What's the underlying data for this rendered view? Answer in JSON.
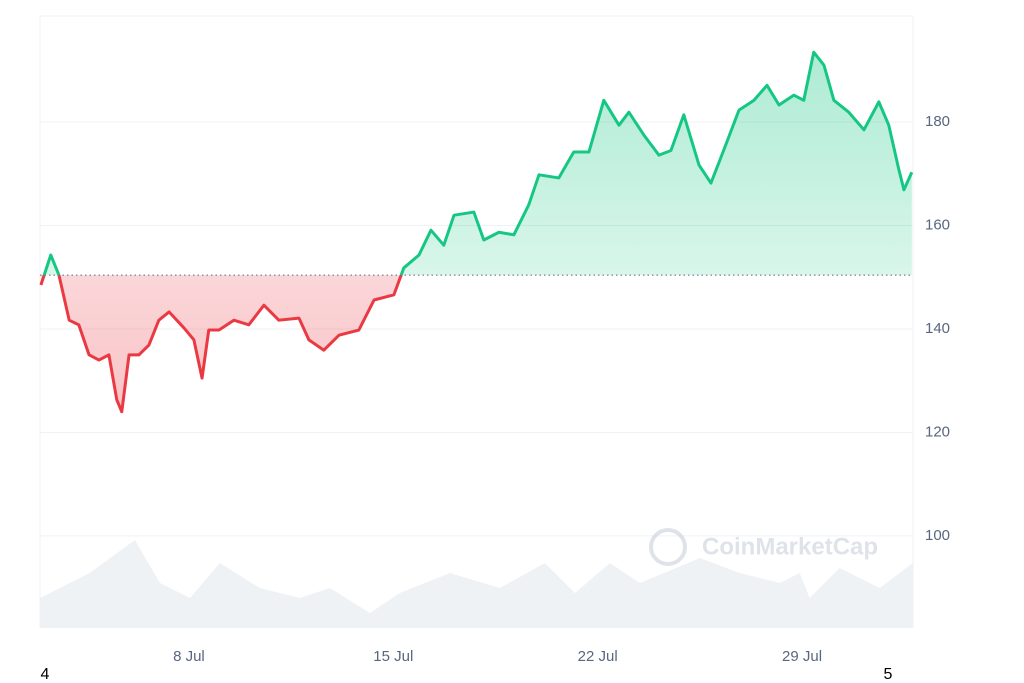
{
  "chart_data": {
    "type": "line",
    "x": [
      2.93,
      3.27,
      3.55,
      3.9,
      4.23,
      4.58,
      4.92,
      5.26,
      5.53,
      5.7,
      5.95,
      6.29,
      6.63,
      6.97,
      7.32,
      7.83,
      8.17,
      8.45,
      8.68,
      9.03,
      9.54,
      10.05,
      10.57,
      11.08,
      11.77,
      12.11,
      12.62,
      13.14,
      13.82,
      14.34,
      15.02,
      15.36,
      15.88,
      16.29,
      16.73,
      17.08,
      17.76,
      18.1,
      18.62,
      19.13,
      19.64,
      19.99,
      20.67,
      21.18,
      21.7,
      22.21,
      22.73,
      23.07,
      23.58,
      24.1,
      24.51,
      24.95,
      25.47,
      25.88,
      26.32,
      26.84,
      27.35,
      27.8,
      28.21,
      28.72,
      29.06,
      29.4,
      29.75,
      30.09,
      30.6,
      31.12,
      31.63,
      31.97,
      32.32,
      32.49,
      32.76
    ],
    "series": [
      {
        "color": "#16c784",
        "negative_color": "#ea3943",
        "values": [
          148.5,
          154.3,
          150.4,
          141.7,
          140.8,
          135,
          134,
          135,
          126.3,
          124,
          135,
          135,
          136.9,
          141.7,
          143.3,
          140.2,
          137.9,
          130.5,
          139.8,
          139.8,
          141.7,
          140.8,
          144.6,
          141.7,
          142.1,
          137.9,
          135.9,
          138.8,
          139.8,
          145.6,
          146.6,
          151.8,
          154.3,
          159.1,
          156.2,
          162,
          162.6,
          157.2,
          158.7,
          158.2,
          164,
          169.8,
          169.2,
          174.2,
          174.2,
          184.2,
          179.4,
          181.9,
          177.5,
          173.6,
          174.5,
          181.4,
          171.7,
          168.2,
          174.6,
          182.3,
          184.2,
          187.1,
          183.3,
          185.2,
          184.2,
          193.5,
          191,
          184.2,
          181.9,
          178.5,
          183.9,
          179.4,
          170.7,
          166.9,
          170.3
        ]
      }
    ],
    "baseline": 150.4,
    "xlim": [
      2.9,
      32.8
    ],
    "ylim": [
      82.2,
      200.5
    ],
    "xticks": [
      {
        "value": 8,
        "label": "8 Jul"
      },
      {
        "value": 15,
        "label": "15 Jul"
      },
      {
        "value": 22,
        "label": "22 Jul"
      },
      {
        "value": 29,
        "label": "29 Jul"
      }
    ],
    "yticks": [
      100,
      120,
      140,
      160,
      180
    ],
    "grid": true,
    "corner_labels": [
      "4",
      "5"
    ],
    "watermark": "CoinMarketCap",
    "volume": {
      "color": "#eff2f5",
      "ylim": [
        0,
        100
      ],
      "x": [
        2.9,
        4.6,
        6.15,
        7.01,
        8.04,
        9.06,
        10.43,
        11.8,
        12.83,
        14.2,
        15.22,
        16.94,
        18.65,
        20.19,
        21.22,
        22.42,
        23.45,
        25.5,
        26.87,
        28.24,
        28.92,
        29.26,
        30.29,
        31.66,
        32.79
      ],
      "values": [
        30,
        55,
        88,
        45,
        30,
        65,
        40,
        30,
        40,
        15,
        35,
        55,
        40,
        65,
        35,
        65,
        45,
        70,
        55,
        45,
        55,
        30,
        60,
        40,
        65
      ]
    }
  }
}
